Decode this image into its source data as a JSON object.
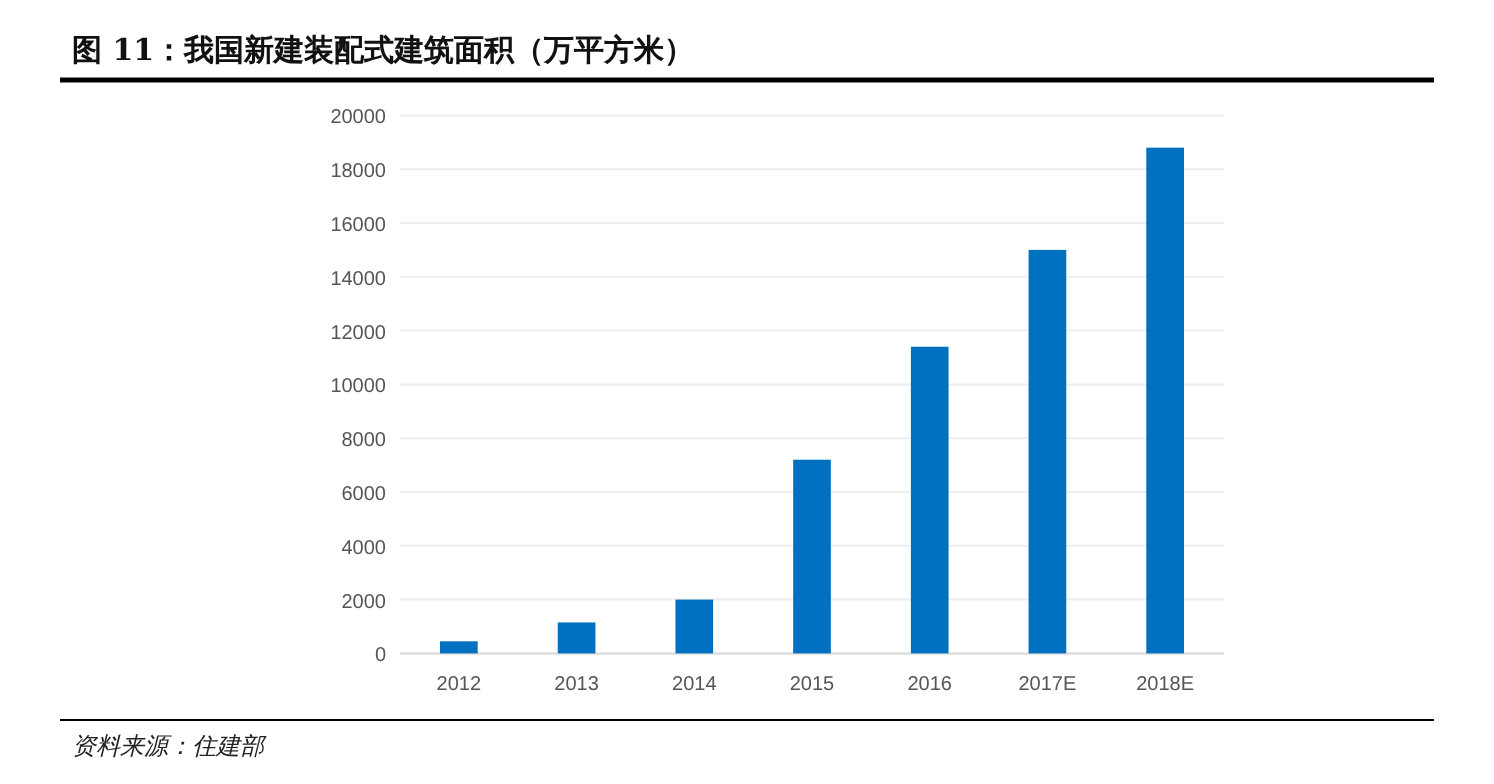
{
  "chart_data": {
    "type": "bar",
    "title": "图 11：我国新建装配式建筑面积（万平方米）",
    "categories": [
      "2012",
      "2013",
      "2014",
      "2015",
      "2016",
      "2017E",
      "2018E"
    ],
    "values": [
      450,
      1150,
      2000,
      7200,
      11400,
      15000,
      18800
    ],
    "color": "#0070c0",
    "ylim": [
      0,
      20000
    ],
    "yticks": [
      0,
      2000,
      4000,
      6000,
      8000,
      10000,
      12000,
      14000,
      16000,
      18000,
      20000
    ],
    "grid": "y",
    "annotations": [
      "资料来源：住建部"
    ]
  }
}
